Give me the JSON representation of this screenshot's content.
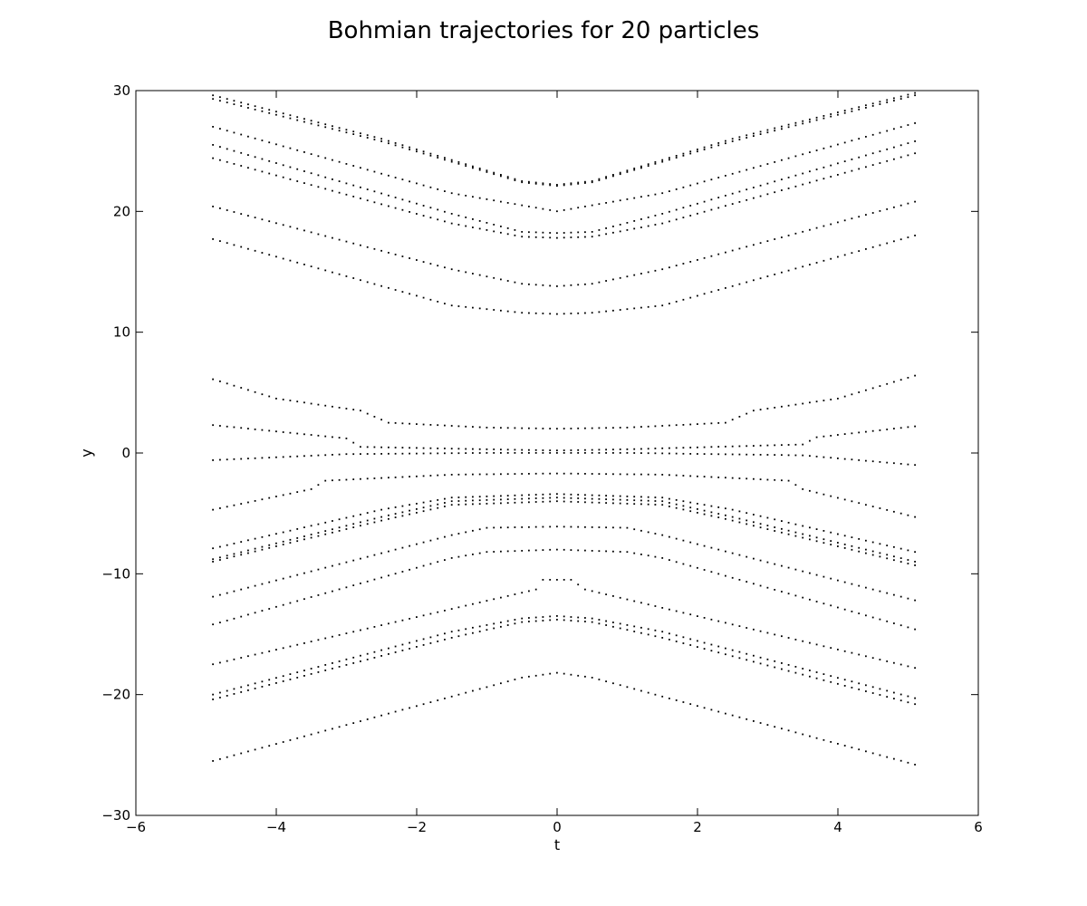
{
  "chart_data": {
    "type": "scatter",
    "title": "Bohmian trajectories for 20 particles",
    "xlabel": "t",
    "ylabel": "y",
    "xlim": [
      -6,
      6
    ],
    "ylim": [
      -30,
      30
    ],
    "x_ticks": [
      -6,
      -4,
      -2,
      0,
      2,
      4,
      6
    ],
    "y_ticks": [
      -30,
      -20,
      -10,
      0,
      10,
      20,
      30
    ],
    "x_tick_labels": [
      "−6",
      "−4",
      "−2",
      "0",
      "2",
      "4",
      "6"
    ],
    "y_tick_labels": [
      "−30",
      "−20",
      "−10",
      "0",
      "10",
      "20",
      "30"
    ],
    "grid": false,
    "legend": "none",
    "marker": "dot",
    "marker_color": "#000000",
    "x_range": [
      -4.9,
      5.1
    ],
    "series": [
      {
        "values": [
          [
            -4.9,
            29.6
          ],
          [
            -2.5,
            26.0
          ],
          [
            -0.5,
            22.5
          ],
          [
            0,
            22.2
          ],
          [
            0.5,
            22.5
          ],
          [
            2.5,
            26.0
          ],
          [
            5.1,
            29.8
          ]
        ]
      },
      {
        "values": [
          [
            -4.9,
            29.3
          ],
          [
            -2.5,
            25.8
          ],
          [
            -0.5,
            22.4
          ],
          [
            0,
            22.1
          ],
          [
            0.5,
            22.4
          ],
          [
            2.5,
            25.8
          ],
          [
            5.1,
            29.6
          ]
        ]
      },
      {
        "values": [
          [
            -4.9,
            27.0
          ],
          [
            -1.5,
            21.5
          ],
          [
            0,
            20.0
          ],
          [
            1.5,
            21.5
          ],
          [
            5.1,
            27.3
          ]
        ]
      },
      {
        "values": [
          [
            -4.9,
            25.5
          ],
          [
            -1.5,
            19.8
          ],
          [
            -0.5,
            18.3
          ],
          [
            0,
            18.2
          ],
          [
            0.5,
            18.3
          ],
          [
            1.5,
            19.8
          ],
          [
            5.1,
            25.8
          ]
        ]
      },
      {
        "values": [
          [
            -4.9,
            24.4
          ],
          [
            -1.5,
            19.0
          ],
          [
            -0.5,
            17.9
          ],
          [
            0,
            17.8
          ],
          [
            0.5,
            17.9
          ],
          [
            1.5,
            19.0
          ],
          [
            5.1,
            24.8
          ]
        ]
      },
      {
        "values": [
          [
            -4.9,
            20.4
          ],
          [
            -1.5,
            15.2
          ],
          [
            -0.5,
            14.0
          ],
          [
            0,
            13.8
          ],
          [
            0.5,
            14.0
          ],
          [
            1.5,
            15.2
          ],
          [
            5.1,
            20.8
          ]
        ]
      },
      {
        "values": [
          [
            -4.9,
            17.7
          ],
          [
            -1.5,
            12.2
          ],
          [
            -0.5,
            11.6
          ],
          [
            0,
            11.5
          ],
          [
            0.5,
            11.6
          ],
          [
            1.5,
            12.2
          ],
          [
            5.1,
            18.0
          ]
        ]
      },
      {
        "values": [
          [
            -4.9,
            6.1
          ],
          [
            -4.0,
            4.5
          ],
          [
            -2.8,
            3.5
          ],
          [
            -2.4,
            2.5
          ],
          [
            -1.0,
            2.1
          ],
          [
            0,
            2.0
          ],
          [
            1.0,
            2.1
          ],
          [
            2.4,
            2.5
          ],
          [
            2.8,
            3.5
          ],
          [
            4.0,
            4.5
          ],
          [
            5.1,
            6.4
          ]
        ]
      },
      {
        "values": [
          [
            -4.9,
            2.3
          ],
          [
            -3.0,
            1.2
          ],
          [
            -2.8,
            0.5
          ],
          [
            -1.0,
            0.3
          ],
          [
            0,
            0.2
          ],
          [
            1.0,
            0.3
          ],
          [
            3.5,
            0.7
          ],
          [
            3.7,
            1.3
          ],
          [
            5.1,
            2.2
          ]
        ]
      },
      {
        "values": [
          [
            -4.9,
            -0.6
          ],
          [
            -3.0,
            -0.1
          ],
          [
            -1.0,
            0.0
          ],
          [
            0,
            0.0
          ],
          [
            1.0,
            0.0
          ],
          [
            3.5,
            -0.2
          ],
          [
            5.1,
            -1.0
          ]
        ]
      },
      {
        "values": [
          [
            -4.9,
            -4.7
          ],
          [
            -3.5,
            -3.0
          ],
          [
            -3.3,
            -2.3
          ],
          [
            -1.5,
            -1.8
          ],
          [
            0,
            -1.7
          ],
          [
            1.5,
            -1.8
          ],
          [
            3.3,
            -2.3
          ],
          [
            3.5,
            -3.0
          ],
          [
            5.1,
            -5.3
          ]
        ]
      },
      {
        "values": [
          [
            -4.9,
            -7.9
          ],
          [
            -2.5,
            -4.7
          ],
          [
            -1.5,
            -3.7
          ],
          [
            0,
            -3.4
          ],
          [
            1.5,
            -3.7
          ],
          [
            2.5,
            -4.7
          ],
          [
            5.1,
            -8.2
          ]
        ]
      },
      {
        "values": [
          [
            -4.9,
            -8.8
          ],
          [
            -2.5,
            -5.3
          ],
          [
            -1.5,
            -4.0
          ],
          [
            0,
            -3.7
          ],
          [
            1.5,
            -4.0
          ],
          [
            2.5,
            -5.3
          ],
          [
            5.1,
            -9.0
          ]
        ]
      },
      {
        "values": [
          [
            -4.9,
            -9.0
          ],
          [
            -2.5,
            -5.6
          ],
          [
            -1.5,
            -4.3
          ],
          [
            0,
            -4.0
          ],
          [
            1.5,
            -4.3
          ],
          [
            2.5,
            -5.6
          ],
          [
            5.1,
            -9.3
          ]
        ]
      },
      {
        "values": [
          [
            -4.9,
            -11.9
          ],
          [
            -1.5,
            -6.8
          ],
          [
            -1.0,
            -6.2
          ],
          [
            0,
            -6.1
          ],
          [
            1.0,
            -6.2
          ],
          [
            1.5,
            -6.8
          ],
          [
            5.1,
            -12.2
          ]
        ]
      },
      {
        "values": [
          [
            -4.9,
            -14.2
          ],
          [
            -1.5,
            -8.7
          ],
          [
            -1.0,
            -8.2
          ],
          [
            0,
            -8.0
          ],
          [
            1.0,
            -8.2
          ],
          [
            1.5,
            -8.7
          ],
          [
            5.1,
            -14.6
          ]
        ]
      },
      {
        "values": [
          [
            -4.9,
            -17.5
          ],
          [
            -0.3,
            -11.3
          ],
          [
            -0.2,
            -10.5
          ],
          [
            0.2,
            -10.5
          ],
          [
            0.4,
            -11.3
          ],
          [
            5.1,
            -17.8
          ]
        ]
      },
      {
        "values": [
          [
            -4.9,
            -20.0
          ],
          [
            -1.5,
            -14.8
          ],
          [
            -0.5,
            -13.7
          ],
          [
            0,
            -13.5
          ],
          [
            0.5,
            -13.7
          ],
          [
            1.5,
            -14.8
          ],
          [
            5.1,
            -20.3
          ]
        ]
      },
      {
        "values": [
          [
            -4.9,
            -20.4
          ],
          [
            -1.5,
            -15.3
          ],
          [
            -0.5,
            -14.0
          ],
          [
            0,
            -13.8
          ],
          [
            0.5,
            -14.0
          ],
          [
            1.5,
            -15.3
          ],
          [
            5.1,
            -20.8
          ]
        ]
      },
      {
        "values": [
          [
            -4.9,
            -25.5
          ],
          [
            -0.5,
            -18.6
          ],
          [
            0,
            -18.2
          ],
          [
            0.5,
            -18.6
          ],
          [
            5.1,
            -25.8
          ]
        ]
      }
    ]
  }
}
